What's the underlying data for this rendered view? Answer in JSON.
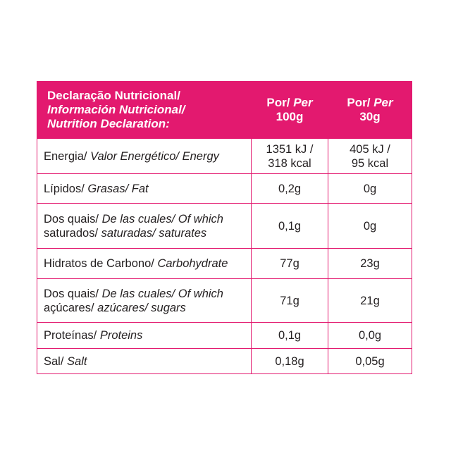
{
  "header": {
    "title_pt": "Declaração Nutricional/",
    "title_es": "Información Nutricional/",
    "title_en": "Nutrition Declaration:",
    "col1_line1_pt": "Por/",
    "col1_line1_en": "Per",
    "col1_line2": "100g",
    "col2_line1_pt": "Por/",
    "col2_line1_en": "Per",
    "col2_line2": "30g"
  },
  "rows": [
    {
      "pt": "Energia/",
      "es": "Valor Energético/",
      "en": "Energy",
      "v100_l1": "1351 kJ /",
      "v100_l2": "318 kcal",
      "v30_l1": "405 kJ /",
      "v30_l2": "95 kcal"
    },
    {
      "pt": "Lípidos/",
      "es": "Grasas/",
      "en": "Fat",
      "v100": "0,2g",
      "v30": "0g"
    },
    {
      "pt1": "Dos quais/",
      "es1": "De las cuales/",
      "en1": "Of which",
      "pt2": "saturados/",
      "es2": "saturadas/",
      "en2": "saturates",
      "v100": "0,1g",
      "v30": "0g"
    },
    {
      "pt": "Hidratos de Carbono/",
      "en": "Carbohydrate",
      "v100": "77g",
      "v30": "23g"
    },
    {
      "pt1": "Dos quais/",
      "es1": "De las cuales/",
      "en1": "Of which",
      "pt2": "açúcares/",
      "es2": "azúcares/",
      "en2": "sugars",
      "v100": "71g",
      "v30": "21g"
    },
    {
      "pt": "Proteínas/",
      "en": "Proteins",
      "v100": "0,1g",
      "v30": "0,0g"
    },
    {
      "pt": "Sal/",
      "en": "Salt",
      "v100": "0,18g",
      "v30": "0,05g"
    }
  ],
  "colors": {
    "accent": "#e3196f",
    "text": "#231f20"
  }
}
